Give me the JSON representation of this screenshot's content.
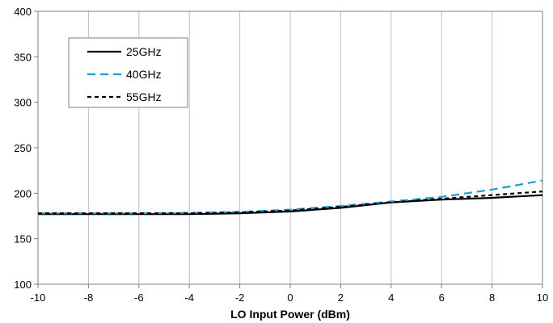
{
  "chart_data": {
    "type": "line",
    "xlabel": "LO Input Power (dBm)",
    "ylabel": "",
    "xlim": [
      -10,
      10
    ],
    "ylim": [
      100,
      400
    ],
    "xticks": [
      -10,
      -8,
      -6,
      -4,
      -2,
      0,
      2,
      4,
      6,
      8,
      10
    ],
    "yticks": [
      100,
      150,
      200,
      250,
      300,
      350,
      400
    ],
    "grid": "vertical",
    "legend_position": "top-left",
    "x": [
      -10,
      -8,
      -6,
      -4,
      -2,
      0,
      2,
      4,
      6,
      8,
      10
    ],
    "series": [
      {
        "name": "25GHz",
        "color": "#000000",
        "dash": "solid",
        "values": [
          177,
          177,
          177,
          177,
          178,
          180,
          184,
          190,
          193,
          195,
          198
        ]
      },
      {
        "name": "40GHz",
        "color": "#1f9ad6",
        "dash": "long-dash",
        "values": [
          178,
          178,
          178,
          178.5,
          179.5,
          182,
          186,
          191,
          196,
          204,
          214
        ]
      },
      {
        "name": "55GHz",
        "color": "#000000",
        "dash": "short-dash",
        "values": [
          178,
          178,
          178,
          178,
          179,
          181,
          185,
          190,
          194,
          198,
          202
        ]
      }
    ]
  }
}
